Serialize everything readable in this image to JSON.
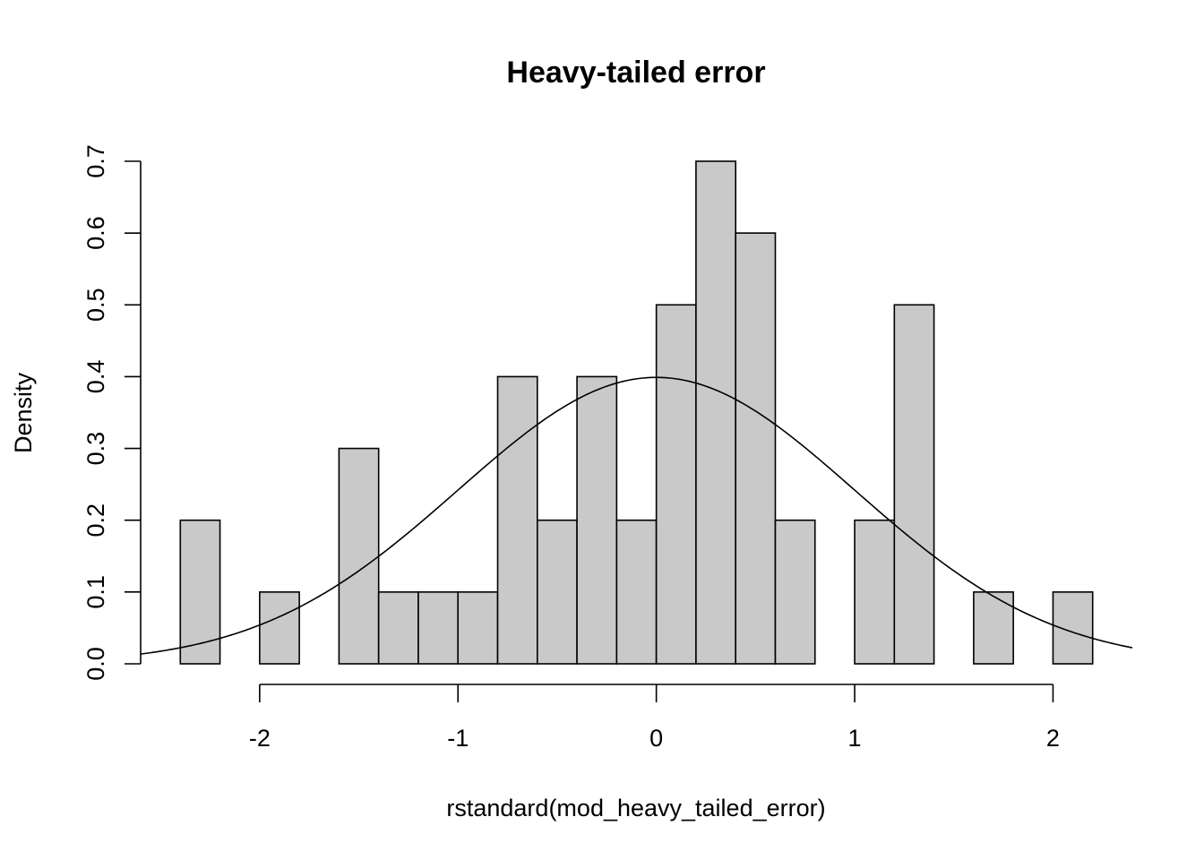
{
  "chart_data": {
    "type": "bar",
    "subtype": "histogram",
    "title": "Heavy-tailed error",
    "xlabel": "rstandard(mod_heavy_tailed_error)",
    "ylabel": "Density",
    "bin_width": 0.2,
    "bins": [
      {
        "x0": -2.4,
        "x1": -2.2,
        "density": 0.2
      },
      {
        "x0": -2.2,
        "x1": -2.0,
        "density": 0.0
      },
      {
        "x0": -2.0,
        "x1": -1.8,
        "density": 0.1
      },
      {
        "x0": -1.8,
        "x1": -1.6,
        "density": 0.0
      },
      {
        "x0": -1.6,
        "x1": -1.4,
        "density": 0.3
      },
      {
        "x0": -1.4,
        "x1": -1.2,
        "density": 0.1
      },
      {
        "x0": -1.2,
        "x1": -1.0,
        "density": 0.1
      },
      {
        "x0": -1.0,
        "x1": -0.8,
        "density": 0.1
      },
      {
        "x0": -0.8,
        "x1": -0.6,
        "density": 0.4
      },
      {
        "x0": -0.6,
        "x1": -0.4,
        "density": 0.2
      },
      {
        "x0": -0.4,
        "x1": -0.2,
        "density": 0.4
      },
      {
        "x0": -0.2,
        "x1": 0.0,
        "density": 0.2
      },
      {
        "x0": 0.0,
        "x1": 0.2,
        "density": 0.5
      },
      {
        "x0": 0.2,
        "x1": 0.4,
        "density": 0.7
      },
      {
        "x0": 0.4,
        "x1": 0.6,
        "density": 0.6
      },
      {
        "x0": 0.6,
        "x1": 0.8,
        "density": 0.2
      },
      {
        "x0": 0.8,
        "x1": 1.0,
        "density": 0.0
      },
      {
        "x0": 1.0,
        "x1": 1.2,
        "density": 0.2
      },
      {
        "x0": 1.2,
        "x1": 1.4,
        "density": 0.5
      },
      {
        "x0": 1.4,
        "x1": 1.6,
        "density": 0.0
      },
      {
        "x0": 1.6,
        "x1": 1.8,
        "density": 0.1
      },
      {
        "x0": 1.8,
        "x1": 2.0,
        "density": 0.0
      },
      {
        "x0": 2.0,
        "x1": 2.2,
        "density": 0.1
      }
    ],
    "overlay": {
      "type": "line",
      "function": "standard normal density",
      "mean": 0,
      "sd": 1,
      "x_range": [
        -2.6,
        2.4
      ]
    },
    "xlim": [
      -2.6,
      2.4
    ],
    "ylim": [
      0,
      0.7
    ],
    "x_ticks": [
      "-2",
      "-1",
      "0",
      "1",
      "2"
    ],
    "y_ticks": [
      "0.0",
      "0.1",
      "0.2",
      "0.3",
      "0.4",
      "0.5",
      "0.6",
      "0.7"
    ],
    "bar_color": "#c9c9c9",
    "grid": false,
    "legend": "none"
  }
}
